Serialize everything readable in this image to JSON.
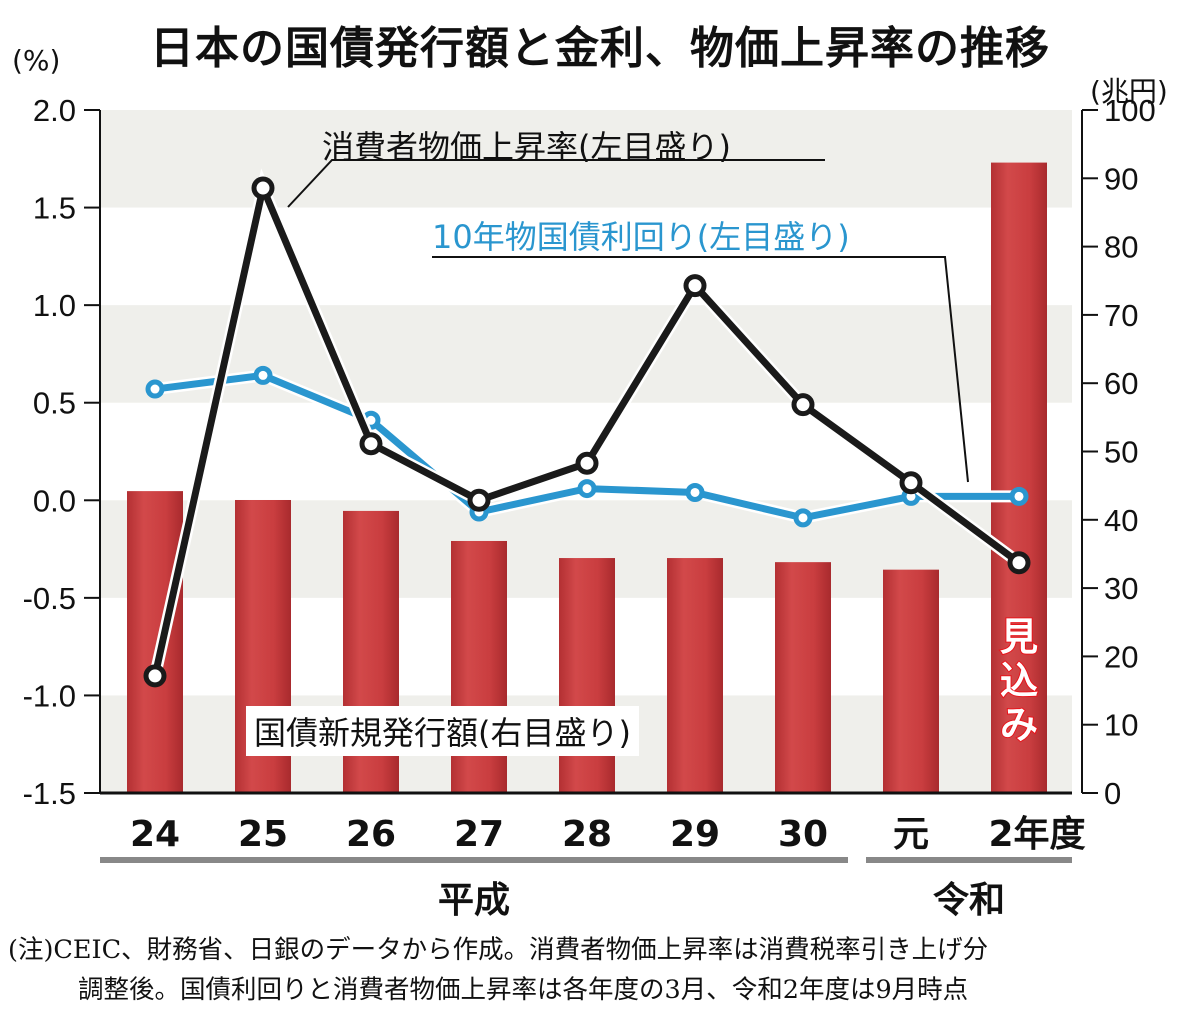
{
  "title": "日本の国債発行額と金利、物価上昇率の推移",
  "left_unit": "(%)",
  "right_unit": "(兆円)",
  "note_lines": [
    "(注)CEIC、財務省、日銀のデータから作成。消費者物価上昇率は消費税率引き上げ分",
    "調整後。国債利回りと消費者物価上昇率は各年度の3月、令和2年度は9月時点"
  ],
  "colors": {
    "bars": "#c83a3c",
    "cpi": "#1a1a1a",
    "yield": "#2a96cf",
    "band": "#efefeb"
  },
  "chart_data": {
    "type": "bar+line",
    "categories": [
      "24",
      "25",
      "26",
      "27",
      "28",
      "29",
      "30",
      "元",
      "2年度"
    ],
    "eras": [
      {
        "label": "平成",
        "from": "24",
        "to": "30"
      },
      {
        "label": "令和",
        "from": "元",
        "to": "2年度"
      }
    ],
    "left_axis": {
      "ylim": [
        -1.5,
        2.0
      ],
      "ticks": [
        "2.0",
        "1.5",
        "1.0",
        "0.5",
        "0.0",
        "-0.5",
        "-1.0",
        "-1.5"
      ]
    },
    "right_axis": {
      "ylim": [
        0,
        100
      ],
      "ticks": [
        "100",
        "90",
        "80",
        "70",
        "60",
        "50",
        "40",
        "30",
        "20",
        "10",
        "0"
      ]
    },
    "grid": "alternating horizontal bands",
    "series": [
      {
        "name": "国債新規発行額(右目盛り)",
        "axis": "right",
        "kind": "bar",
        "values": [
          44.2,
          42.9,
          41.3,
          36.9,
          34.4,
          34.4,
          33.8,
          32.7,
          92.3
        ]
      },
      {
        "name": "消費者物価上昇率(左目盛り)",
        "axis": "left",
        "kind": "line",
        "values": [
          -0.9,
          1.6,
          0.29,
          0.0,
          0.19,
          1.1,
          0.49,
          0.09,
          -0.32
        ]
      },
      {
        "name": "10年物国債利回り(左目盛り)",
        "axis": "left",
        "kind": "line",
        "values": [
          0.57,
          0.64,
          0.41,
          -0.06,
          0.06,
          0.04,
          -0.09,
          0.02,
          0.02
        ]
      }
    ],
    "annotations": [
      {
        "category": "2年度",
        "text": "見込み"
      }
    ]
  }
}
